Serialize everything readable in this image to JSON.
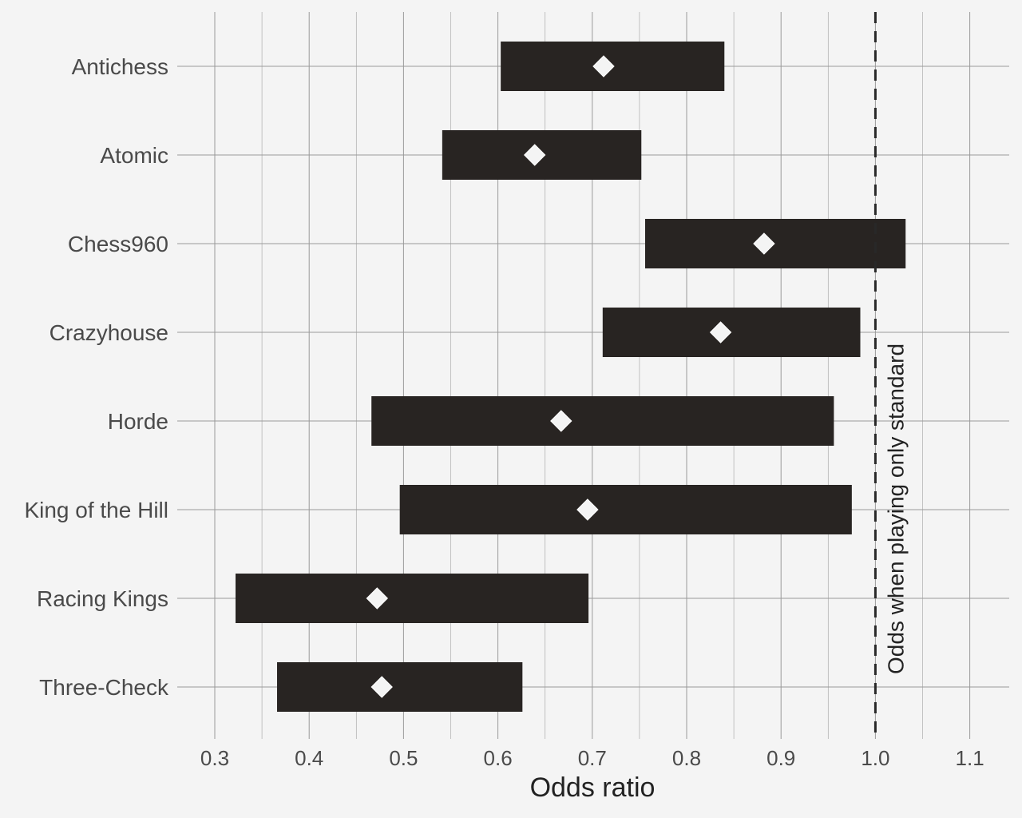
{
  "chart_data": {
    "type": "forest",
    "title": "",
    "xlabel": "Odds ratio",
    "ylabel": "",
    "xlim": [
      0.25,
      1.14
    ],
    "x_ticks": [
      0.3,
      0.4,
      0.5,
      0.6,
      0.7,
      0.8,
      0.9,
      1.0,
      1.1
    ],
    "x_tick_labels": [
      "0.3",
      "0.4",
      "0.5",
      "0.6",
      "0.7",
      "0.8",
      "0.9",
      "1.0",
      "1.1"
    ],
    "x_minor_ticks": [
      0.35,
      0.45,
      0.55,
      0.65,
      0.75,
      0.85,
      0.95,
      1.05
    ],
    "grid": true,
    "categories": [
      "Antichess",
      "Atomic",
      "Chess960",
      "Crazyhouse",
      "Horde",
      "King of the Hill",
      "Racing Kings",
      "Three-Check"
    ],
    "estimates": [
      0.712,
      0.639,
      0.882,
      0.836,
      0.667,
      0.695,
      0.472,
      0.477
    ],
    "lower": [
      0.603,
      0.541,
      0.756,
      0.711,
      0.466,
      0.496,
      0.322,
      0.366
    ],
    "upper": [
      0.84,
      0.752,
      1.032,
      0.984,
      0.956,
      0.975,
      0.696,
      0.626
    ],
    "reference_line": {
      "x": 1.0,
      "label": "Odds when playing only standard",
      "style": "dashed"
    }
  },
  "colors": {
    "background": "#f4f4f4",
    "bar": "#282422",
    "marker": "#f4f4f4",
    "grid": "#9a9a9a",
    "reference": "#282828"
  }
}
